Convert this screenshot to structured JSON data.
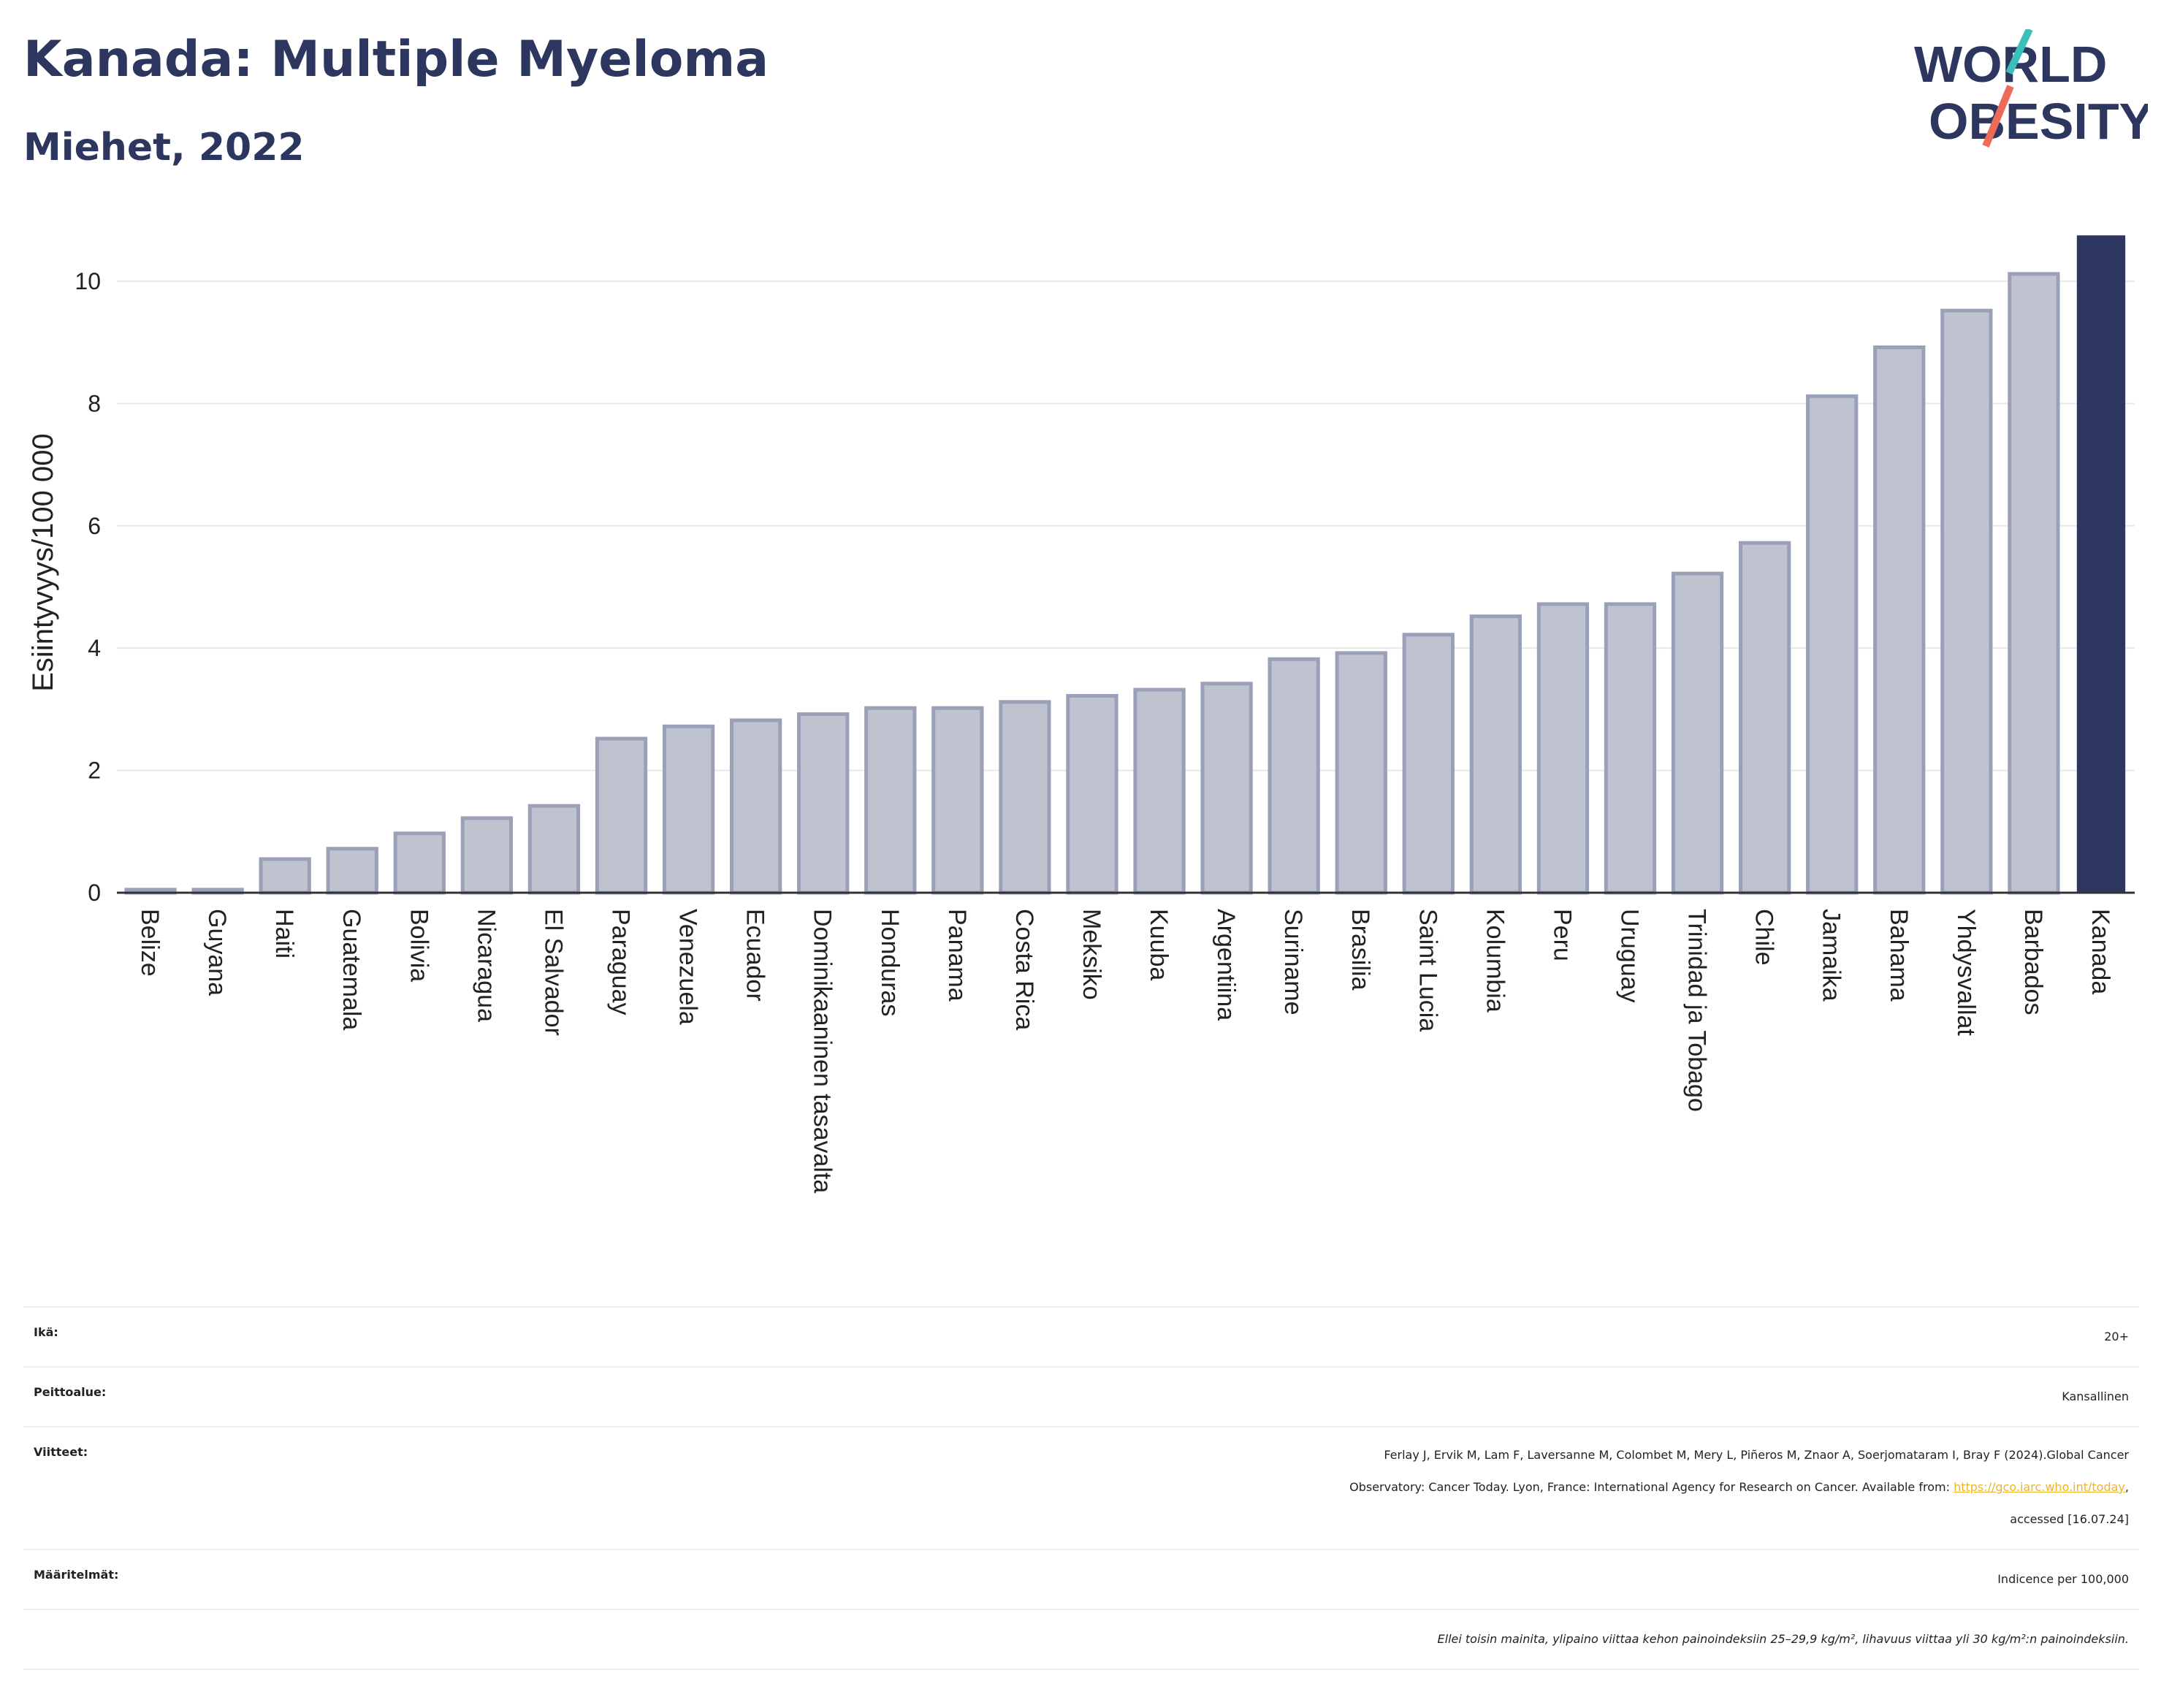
{
  "header": {
    "title": "Kanada: Multiple Myeloma",
    "subtitle": "Miehet, 2022",
    "logo_line1": "WORLD",
    "logo_line2": "OBESITY"
  },
  "colors": {
    "highlight": "#2c365e",
    "bar_fill": "#bfc3d0",
    "bar_stroke": "#9aa0b8",
    "logo_teal": "#3bbfb9",
    "logo_coral": "#ee6b5a"
  },
  "chart_data": {
    "type": "bar",
    "ylabel": "Esiintyvyys/100 000",
    "ylim": [
      0,
      10.8
    ],
    "yticks": [
      "0",
      "2",
      "4",
      "6",
      "8",
      "10"
    ],
    "grid": true,
    "highlight": "Kanada",
    "categories": [
      "Belize",
      "Guyana",
      "Haiti",
      "Guatemala",
      "Bolivia",
      "Nicaragua",
      "El Salvador",
      "Paraguay",
      "Venezuela",
      "Ecuador",
      "Dominikaaninen tasavalta",
      "Honduras",
      "Panama",
      "Costa Rica",
      "Meksiko",
      "Kuuba",
      "Argentiina",
      "Suriname",
      "Brasilia",
      "Saint Lucia",
      "Kolumbia",
      "Peru",
      "Uruguay",
      "Trinidad ja Tobago",
      "Chile",
      "Jamaika",
      "Bahama",
      "Yhdysvallat",
      "Barbados",
      "Kanada"
    ],
    "values": [
      0.05,
      0.05,
      0.55,
      0.72,
      0.97,
      1.22,
      1.42,
      2.52,
      2.72,
      2.82,
      2.92,
      3.02,
      3.02,
      3.12,
      3.22,
      3.32,
      3.42,
      3.82,
      3.92,
      4.22,
      4.52,
      4.72,
      4.72,
      5.22,
      5.72,
      8.12,
      8.92,
      9.52,
      10.12,
      10.75
    ]
  },
  "meta": {
    "age_label": "Ikä:",
    "age_value": "20+",
    "coverage_label": "Peittoalue:",
    "coverage_value": "Kansallinen",
    "refs_label": "Viitteet:",
    "refs_line1": "Ferlay J, Ervik M, Lam F, Laversanne M, Colombet M, Mery L, Piñeros M, Znaor A, Soerjomataram I, Bray F (2024).Global Cancer",
    "refs_line2_prefix": "Observatory: Cancer Today. Lyon, France: International Agency for Research on Cancer. Available from: ",
    "refs_link": "https://gco.iarc.who.int/today",
    "refs_line2_suffix": ",",
    "refs_line3": "accessed [16.07.24]",
    "defs_label": "Määritelmät:",
    "defs_value": "Indicence per 100,000",
    "footnote": "Ellei toisin mainita, ylipaino viittaa kehon painoindeksiin 25–29,9 kg/m², lihavuus viittaa yli 30 kg/m²:n painoindeksiin."
  }
}
